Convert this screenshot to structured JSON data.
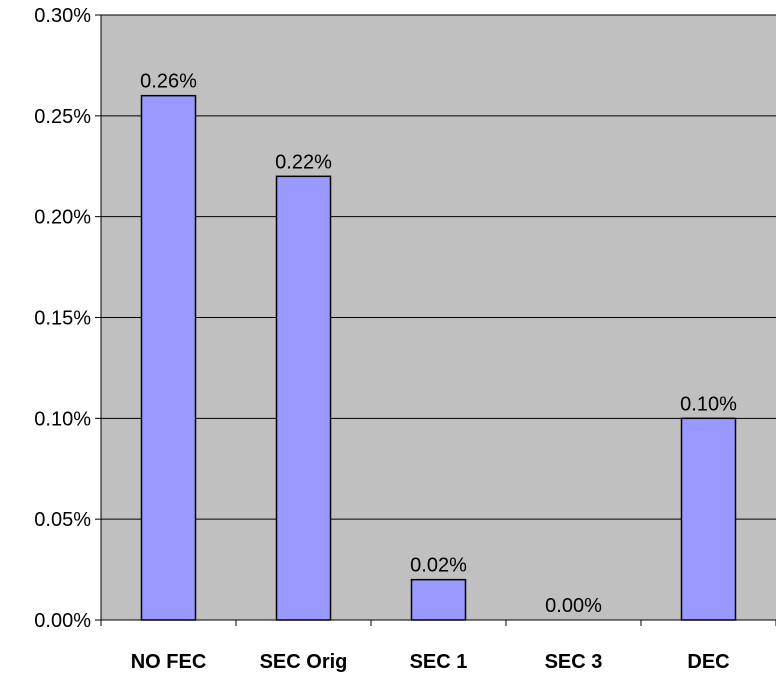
{
  "chart_data": {
    "type": "bar",
    "categories": [
      "NO FEC",
      "SEC Orig",
      "SEC 1",
      "SEC 3",
      "DEC"
    ],
    "values": [
      0.26,
      0.22,
      0.02,
      0.0,
      0.1
    ],
    "data_labels": [
      "0.26%",
      "0.22%",
      "0.02%",
      "0.00%",
      "0.10%"
    ],
    "ylim": [
      0,
      0.3
    ],
    "yticks": [
      0.0,
      0.05,
      0.1,
      0.15,
      0.2,
      0.25,
      0.3
    ],
    "ytick_labels": [
      "0.00%",
      "0.05%",
      "0.10%",
      "0.15%",
      "0.20%",
      "0.25%",
      "0.30%"
    ],
    "title": "",
    "xlabel": "",
    "ylabel": "",
    "grid": "horizontal",
    "legend": "none",
    "colors": {
      "bar_fill": "#9999ff",
      "plot_background": "#c0c0c0",
      "grid": "#000000"
    }
  }
}
